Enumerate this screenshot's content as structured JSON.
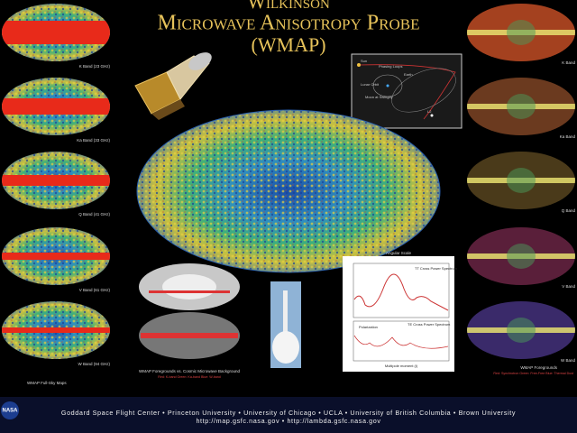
{
  "title": {
    "line1": "Wilkinson",
    "line2": "Microwave Anisotropy Probe",
    "line3": "(WMAP)"
  },
  "full_sky_maps": {
    "caption": "WMAP Full-Sky Maps",
    "bands": [
      "K Band (23 GHz)",
      "Ka Band (33 GHz)",
      "Q Band (41 GHz)",
      "V Band (61 GHz)",
      "W Band (94 GHz)"
    ]
  },
  "foregrounds": {
    "caption": "WMAP Foregrounds",
    "legend": "Red: Synchrotron Green: Free-Free Blue: Thermal Dust",
    "bands": [
      "K Band",
      "Ka Band",
      "Q Band",
      "V Band",
      "W Band"
    ]
  },
  "comparison": {
    "caption": "WMAP Foregrounds vs. Cosmic Microwave Background",
    "legend": "Red: K-band Green: Ka-band Blue: W-band"
  },
  "orbit_diagram": {
    "labels": [
      "Sun",
      "Phasing Loops",
      "Earth",
      "Lunar Orbit",
      "Moon at Swingby",
      "L2"
    ]
  },
  "power_spectrum": {
    "top_axis": "Angular Scale",
    "tt_title": "TT Cross Power Spectrum",
    "te_title": "TE Cross Power Spectrum",
    "polarization": "Polarization",
    "x_label": "Multipole moment (l)"
  },
  "logo": "NASA",
  "footer": {
    "institutions": "Goddard Space Flight Center • Princeton University • University of Chicago • UCLA • University of British Columbia • Brown University",
    "urls": "http://map.gsfc.nasa.gov • http://lambda.gsfc.nasa.gov"
  }
}
